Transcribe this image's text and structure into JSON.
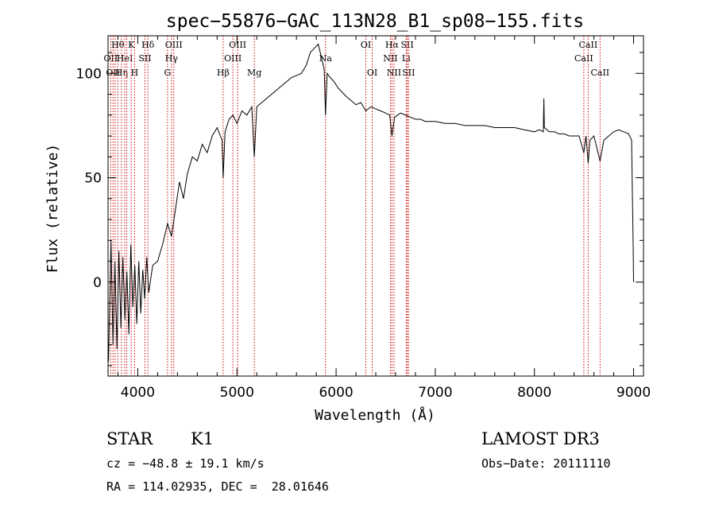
{
  "chart_data": {
    "type": "line",
    "title": "spec−55876−GAC_113N28_B1_sp08−155.fits",
    "xlabel": "Wavelength (Å)",
    "ylabel": "Flux (relative)",
    "xlim": [
      3700,
      9100
    ],
    "ylim": [
      -45,
      118
    ],
    "x_ticks": [
      4000,
      5000,
      6000,
      7000,
      8000,
      9000
    ],
    "x_tick_labels": [
      "4000",
      "5000",
      "6000",
      "7000",
      "8000",
      "9000"
    ],
    "y_ticks": [
      0,
      50,
      100
    ],
    "y_tick_labels": [
      "0",
      "50",
      "100"
    ],
    "grid": false,
    "line_color": "#000000",
    "marker_color": "#cc0000",
    "series": [
      {
        "name": "spectrum",
        "x": [
          3705,
          3730,
          3750,
          3770,
          3790,
          3810,
          3830,
          3850,
          3870,
          3890,
          3910,
          3930,
          3950,
          3970,
          3990,
          4010,
          4030,
          4050,
          4070,
          4090,
          4110,
          4150,
          4200,
          4250,
          4300,
          4340,
          4380,
          4420,
          4460,
          4500,
          4550,
          4600,
          4650,
          4700,
          4750,
          4800,
          4850,
          4861,
          4880,
          4920,
          4960,
          5000,
          5050,
          5100,
          5150,
          5175,
          5200,
          5250,
          5300,
          5350,
          5400,
          5450,
          5500,
          5550,
          5600,
          5650,
          5700,
          5740,
          5780,
          5820,
          5840,
          5860,
          5880,
          5893,
          5910,
          5940,
          5980,
          6020,
          6060,
          6100,
          6150,
          6200,
          6250,
          6300,
          6350,
          6400,
          6450,
          6500,
          6540,
          6563,
          6590,
          6620,
          6650,
          6700,
          6750,
          6800,
          6850,
          6900,
          6950,
          7000,
          7100,
          7200,
          7300,
          7400,
          7500,
          7600,
          7700,
          7800,
          7900,
          8000,
          8050,
          8090,
          8095,
          8100,
          8150,
          8200,
          8250,
          8300,
          8350,
          8400,
          8450,
          8498,
          8520,
          8542,
          8560,
          8600,
          8662,
          8700,
          8750,
          8800,
          8850,
          8900,
          8950,
          8980,
          8995,
          9000
        ],
        "y": [
          -38,
          20,
          -30,
          10,
          -32,
          15,
          -22,
          12,
          -18,
          5,
          -25,
          18,
          -12,
          8,
          -20,
          10,
          -15,
          6,
          -8,
          12,
          -5,
          8,
          10,
          18,
          28,
          22,
          35,
          48,
          40,
          52,
          60,
          58,
          66,
          62,
          70,
          74,
          68,
          50,
          72,
          78,
          80,
          76,
          82,
          80,
          84,
          60,
          84,
          86,
          88,
          90,
          92,
          94,
          96,
          98,
          99,
          100,
          104,
          110,
          112,
          114,
          110,
          106,
          102,
          80,
          100,
          98,
          96,
          93,
          91,
          89,
          87,
          85,
          86,
          82,
          84,
          83,
          82,
          81,
          80,
          70,
          79,
          80,
          81,
          80,
          79,
          78,
          78,
          77,
          77,
          77,
          76,
          76,
          75,
          75,
          75,
          74,
          74,
          74,
          73,
          72,
          73,
          72,
          88,
          74,
          72,
          72,
          71,
          71,
          70,
          70,
          70,
          62,
          70,
          57,
          68,
          70,
          58,
          68,
          70,
          72,
          73,
          72,
          71,
          68,
          20,
          0
        ]
      }
    ],
    "line_markers": [
      {
        "wavelength": 3727,
        "label": "OII",
        "row": 2
      },
      {
        "wavelength": 3750,
        "label": "OII",
        "row": 3
      },
      {
        "wavelength": 3771,
        "label": "",
        "row": 0
      },
      {
        "wavelength": 3798,
        "label": "Hθ",
        "row": 1
      },
      {
        "wavelength": 3835,
        "label": "Hη",
        "row": 3
      },
      {
        "wavelength": 3869,
        "label": "HeI",
        "row": 2
      },
      {
        "wavelength": 3889,
        "label": "",
        "row": 0
      },
      {
        "wavelength": 3934,
        "label": "K",
        "row": 1
      },
      {
        "wavelength": 3968,
        "label": "H",
        "row": 3
      },
      {
        "wavelength": 4072,
        "label": "SII",
        "row": 2
      },
      {
        "wavelength": 4102,
        "label": "Hδ",
        "row": 1
      },
      {
        "wavelength": 4300,
        "label": "G",
        "row": 3
      },
      {
        "wavelength": 4340,
        "label": "Hγ",
        "row": 2
      },
      {
        "wavelength": 4363,
        "label": "OIII",
        "row": 1
      },
      {
        "wavelength": 4861,
        "label": "Hβ",
        "row": 3
      },
      {
        "wavelength": 4959,
        "label": "OIII",
        "row": 2
      },
      {
        "wavelength": 5007,
        "label": "OIII",
        "row": 1
      },
      {
        "wavelength": 5175,
        "label": "Mg",
        "row": 3
      },
      {
        "wavelength": 5893,
        "label": "Na",
        "row": 2
      },
      {
        "wavelength": 6300,
        "label": "OI",
        "row": 1
      },
      {
        "wavelength": 6364,
        "label": "OI",
        "row": 3
      },
      {
        "wavelength": 6548,
        "label": "NII",
        "row": 2
      },
      {
        "wavelength": 6563,
        "label": "Hα",
        "row": 1
      },
      {
        "wavelength": 6584,
        "label": "NII",
        "row": 3
      },
      {
        "wavelength": 6707,
        "label": "Li",
        "row": 2
      },
      {
        "wavelength": 6717,
        "label": "SII",
        "row": 1
      },
      {
        "wavelength": 6731,
        "label": "SII",
        "row": 3
      },
      {
        "wavelength": 8498,
        "label": "CaII",
        "row": 2
      },
      {
        "wavelength": 8542,
        "label": "CaII",
        "row": 1
      },
      {
        "wavelength": 8662,
        "label": "CaII",
        "row": 3
      }
    ]
  },
  "info": {
    "object_class": "STAR",
    "subclass": "K1",
    "cz": "cz = −48.8 ± 19.1 km/s",
    "coords": "RA = 114.02935, DEC =  28.01646",
    "survey": "LAMOST DR3",
    "obs_date": "Obs−Date: 20111110"
  }
}
